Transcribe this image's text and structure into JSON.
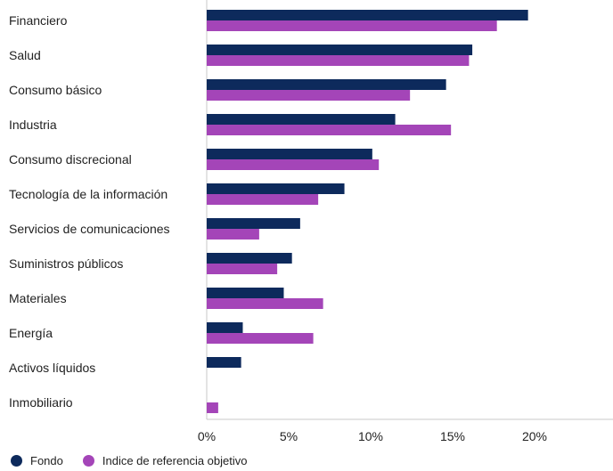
{
  "chart_data": {
    "type": "bar",
    "orientation": "horizontal",
    "categories": [
      "Financiero",
      "Salud",
      "Consumo básico",
      "Industria",
      "Consumo discrecional",
      "Tecnología de la información",
      "Servicios de comunicaciones",
      "Suministros públicos",
      "Materiales",
      "Energía",
      "Activos líquidos",
      "Inmobiliario"
    ],
    "series": [
      {
        "name": "Fondo",
        "color": "#0d2a5c",
        "values": [
          19.6,
          16.2,
          14.6,
          11.5,
          10.1,
          8.4,
          5.7,
          5.2,
          4.7,
          2.2,
          2.1,
          0
        ]
      },
      {
        "name": "Indice de referencia objetivo",
        "color": "#a445b8",
        "values": [
          17.7,
          16.0,
          12.4,
          14.9,
          10.5,
          6.8,
          3.2,
          4.3,
          7.1,
          6.5,
          0,
          0.7
        ]
      }
    ],
    "xticks": [
      "0%",
      "5%",
      "10%",
      "15%",
      "20%"
    ],
    "tick_values": [
      0,
      5,
      10,
      15,
      20
    ],
    "xlim": [
      0,
      25
    ],
    "legend_position": "bottom-left",
    "grid": false
  },
  "legend": [
    {
      "label": "Fondo",
      "color": "#0d2a5c"
    },
    {
      "label": "Indice de referencia objetivo",
      "color": "#a445b8"
    }
  ]
}
